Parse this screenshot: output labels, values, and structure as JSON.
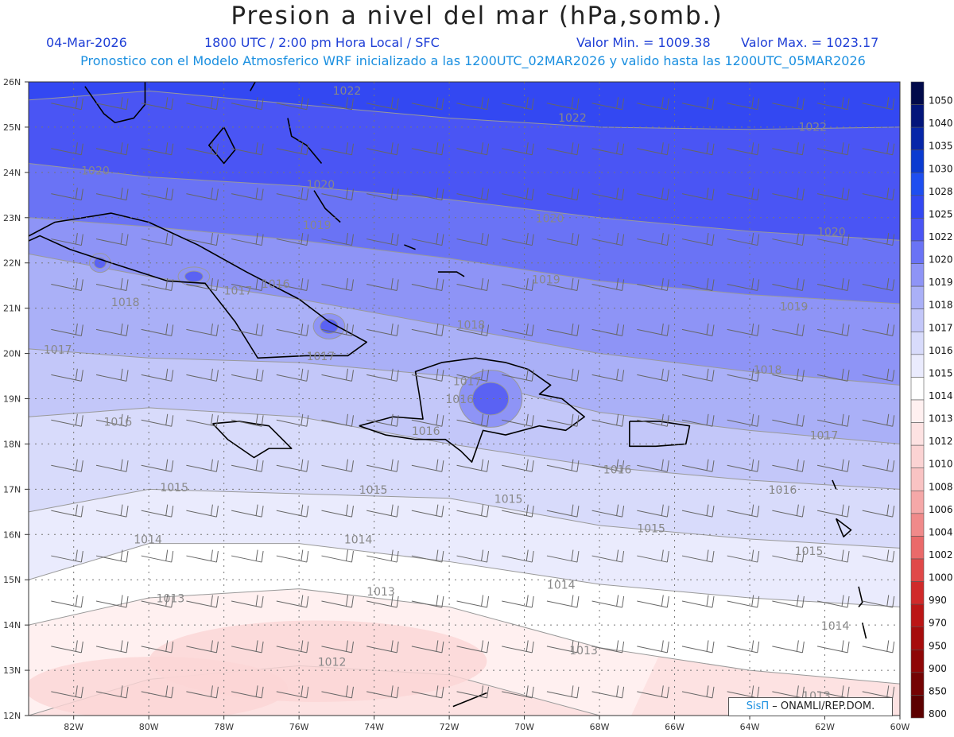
{
  "title": "Presion a nivel del mar (hPa,somb.)",
  "header": {
    "date": "04-Mar-2026",
    "time": "1800 UTC / 2:00 pm Hora Local / SFC",
    "vmin": "Valor Min. = 1009.38",
    "vmax": "Valor Max. = 1023.17",
    "info": "Pronostico con el Modelo Atmosferico WRF inicializado a las 1200UTC_02MAR2026 y valido hasta las  1200UTC_05MAR2026"
  },
  "map": {
    "lat_labels": [
      "26N",
      "25N",
      "24N",
      "23N",
      "22N",
      "21N",
      "20N",
      "19N",
      "18N",
      "17N",
      "16N",
      "15N",
      "14N",
      "13N",
      "12N"
    ],
    "lon_labels": [
      "82W",
      "80W",
      "78W",
      "76W",
      "74W",
      "72W",
      "70W",
      "68W",
      "66W",
      "64W",
      "62W",
      "60W"
    ],
    "lat_range": [
      12,
      26
    ],
    "lon_range": [
      -83.2,
      -60
    ],
    "contours": [
      {
        "value": "1022",
        "points": [
          [
            -83.2,
            25.6
          ],
          [
            -80,
            25.8
          ],
          [
            -76,
            25.5
          ],
          [
            -72,
            25.2
          ],
          [
            -68,
            25.0
          ],
          [
            -64,
            24.95
          ],
          [
            -60,
            25.0
          ]
        ]
      },
      {
        "value": "1020",
        "points": [
          [
            -83.2,
            24.2
          ],
          [
            -80,
            23.9
          ],
          [
            -76,
            23.7
          ],
          [
            -72,
            23.4
          ],
          [
            -68,
            23.0
          ],
          [
            -64,
            22.7
          ],
          [
            -60,
            22.5
          ]
        ]
      },
      {
        "value": "1019",
        "points": [
          [
            -83.2,
            23.0
          ],
          [
            -80,
            22.8
          ],
          [
            -76,
            22.5
          ],
          [
            -72,
            22.1
          ],
          [
            -68,
            21.6
          ],
          [
            -64,
            21.3
          ],
          [
            -60,
            21.1
          ]
        ]
      },
      {
        "value": "1018",
        "points": [
          [
            -83.2,
            22.2
          ],
          [
            -80,
            21.7
          ],
          [
            -76,
            21.2
          ],
          [
            -72,
            20.6
          ],
          [
            -68,
            20.0
          ],
          [
            -64,
            19.6
          ],
          [
            -60,
            19.3
          ]
        ]
      },
      {
        "value": "1017",
        "points": [
          [
            -83.2,
            20.1
          ],
          [
            -80,
            19.9
          ],
          [
            -76,
            19.8
          ],
          [
            -72,
            19.5
          ],
          [
            -68,
            18.7
          ],
          [
            -64,
            18.3
          ],
          [
            -60,
            18.0
          ]
        ]
      },
      {
        "value": "1016",
        "points": [
          [
            -83.2,
            18.6
          ],
          [
            -80,
            18.8
          ],
          [
            -76,
            18.6
          ],
          [
            -72,
            18.0
          ],
          [
            -68,
            17.5
          ],
          [
            -64,
            17.2
          ],
          [
            -60,
            17.0
          ]
        ]
      },
      {
        "value": "1015",
        "points": [
          [
            -83.2,
            16.5
          ],
          [
            -80,
            17.0
          ],
          [
            -76,
            16.9
          ],
          [
            -72,
            16.8
          ],
          [
            -68,
            16.2
          ],
          [
            -64,
            15.9
          ],
          [
            -60,
            15.7
          ]
        ]
      },
      {
        "value": "1014",
        "points": [
          [
            -83.2,
            15.0
          ],
          [
            -80,
            15.8
          ],
          [
            -76,
            15.8
          ],
          [
            -72,
            15.4
          ],
          [
            -68,
            14.9
          ],
          [
            -64,
            14.6
          ],
          [
            -60,
            14.4
          ]
        ]
      },
      {
        "value": "1013",
        "points": [
          [
            -83.2,
            14.0
          ],
          [
            -80,
            14.6
          ],
          [
            -76,
            14.8
          ],
          [
            -72,
            14.4
          ],
          [
            -68,
            13.5
          ],
          [
            -64,
            13.0
          ],
          [
            -60,
            12.7
          ]
        ]
      },
      {
        "value": "1012",
        "points": [
          [
            -83.2,
            12.0
          ],
          [
            -80,
            12.8
          ],
          [
            -76,
            13.1
          ],
          [
            -72,
            12.9
          ],
          [
            -68,
            12.0
          ]
        ]
      }
    ],
    "contour_labels": [
      {
        "text": "1022",
        "lon": -75.1,
        "lat": 25.72
      },
      {
        "text": "1022",
        "lon": -69.1,
        "lat": 25.12
      },
      {
        "text": "1022",
        "lon": -62.7,
        "lat": 24.92
      },
      {
        "text": "1020",
        "lon": -81.8,
        "lat": 23.95
      },
      {
        "text": "1020",
        "lon": -75.8,
        "lat": 23.65
      },
      {
        "text": "1020",
        "lon": -69.7,
        "lat": 22.9
      },
      {
        "text": "1020",
        "lon": -62.2,
        "lat": 22.6
      },
      {
        "text": "1019",
        "lon": -75.9,
        "lat": 22.75
      },
      {
        "text": "1019",
        "lon": -69.8,
        "lat": 21.55
      },
      {
        "text": "1019",
        "lon": -63.2,
        "lat": 20.95
      },
      {
        "text": "1018",
        "lon": -81.0,
        "lat": 21.05
      },
      {
        "text": "1018",
        "lon": -71.8,
        "lat": 20.55
      },
      {
        "text": "1018",
        "lon": -63.9,
        "lat": 19.55
      },
      {
        "text": "1017",
        "lon": -82.8,
        "lat": 20.0
      },
      {
        "text": "1017",
        "lon": -78.0,
        "lat": 21.3
      },
      {
        "text": "1017",
        "lon": -75.8,
        "lat": 19.85
      },
      {
        "text": "1017",
        "lon": -71.9,
        "lat": 19.3
      },
      {
        "text": "1017",
        "lon": -62.4,
        "lat": 18.1
      },
      {
        "text": "1016",
        "lon": -77.0,
        "lat": 21.45
      },
      {
        "text": "1016",
        "lon": -72.1,
        "lat": 18.9
      },
      {
        "text": "1016",
        "lon": -73.0,
        "lat": 18.2
      },
      {
        "text": "1016",
        "lon": -81.2,
        "lat": 18.4
      },
      {
        "text": "1016",
        "lon": -67.9,
        "lat": 17.35
      },
      {
        "text": "1016",
        "lon": -63.5,
        "lat": 16.9
      },
      {
        "text": "1015",
        "lon": -79.7,
        "lat": 16.95
      },
      {
        "text": "1015",
        "lon": -74.4,
        "lat": 16.9
      },
      {
        "text": "1015",
        "lon": -70.8,
        "lat": 16.7
      },
      {
        "text": "1015",
        "lon": -67.0,
        "lat": 16.05
      },
      {
        "text": "1015",
        "lon": -62.8,
        "lat": 15.55
      },
      {
        "text": "1014",
        "lon": -80.4,
        "lat": 15.8
      },
      {
        "text": "1014",
        "lon": -74.8,
        "lat": 15.8
      },
      {
        "text": "1014",
        "lon": -69.4,
        "lat": 14.8
      },
      {
        "text": "1014",
        "lon": -62.1,
        "lat": 13.9
      },
      {
        "text": "1013",
        "lon": -79.8,
        "lat": 14.5
      },
      {
        "text": "1013",
        "lon": -74.2,
        "lat": 14.65
      },
      {
        "text": "1013",
        "lon": -68.8,
        "lat": 13.35
      },
      {
        "text": "1013",
        "lon": -62.6,
        "lat": 12.35
      },
      {
        "text": "1012",
        "lon": -75.5,
        "lat": 13.1
      }
    ],
    "highs": [
      {
        "lon": -70.9,
        "lat": 19.0,
        "rx": 0.6,
        "ry": 0.45
      },
      {
        "lon": -75.2,
        "lat": 20.6,
        "rx": 0.3,
        "ry": 0.2
      },
      {
        "lon": -81.3,
        "lat": 22.0,
        "rx": 0.2,
        "ry": 0.15
      },
      {
        "lon": -78.8,
        "lat": 21.7,
        "rx": 0.3,
        "ry": 0.15
      }
    ],
    "lows": [
      {
        "lon": -75.5,
        "lat": 13.2,
        "rx": 4.5,
        "ry": 0.9
      },
      {
        "lon": -79.8,
        "lat": 12.6,
        "rx": 3.5,
        "ry": 0.7
      }
    ],
    "coastlines": [
      [
        [
          -80.1,
          26.0
        ],
        [
          -80.1,
          25.5
        ],
        [
          -80.4,
          25.2
        ],
        [
          -80.9,
          25.1
        ],
        [
          -81.2,
          25.3
        ],
        [
          -81.7,
          25.9
        ]
      ],
      [
        [
          -84.9,
          21.85
        ],
        [
          -82.5,
          22.9
        ],
        [
          -81.0,
          23.1
        ],
        [
          -80.0,
          22.9
        ],
        [
          -78.7,
          22.4
        ],
        [
          -77.4,
          21.8
        ],
        [
          -76.0,
          21.2
        ],
        [
          -75.2,
          20.7
        ],
        [
          -74.2,
          20.25
        ],
        [
          -74.7,
          19.95
        ],
        [
          -75.8,
          19.95
        ],
        [
          -77.1,
          19.9
        ],
        [
          -77.7,
          20.7
        ],
        [
          -78.5,
          21.55
        ],
        [
          -79.5,
          21.6
        ],
        [
          -81.0,
          22.0
        ],
        [
          -82.1,
          22.3
        ],
        [
          -82.9,
          22.6
        ],
        [
          -84.9,
          21.85
        ]
      ],
      [
        [
          -78.3,
          18.45
        ],
        [
          -77.6,
          18.5
        ],
        [
          -76.8,
          18.4
        ],
        [
          -76.2,
          17.9
        ],
        [
          -76.8,
          17.9
        ],
        [
          -77.2,
          17.7
        ],
        [
          -77.9,
          18.1
        ],
        [
          -78.3,
          18.45
        ]
      ],
      [
        [
          -74.4,
          18.4
        ],
        [
          -73.5,
          18.6
        ],
        [
          -72.7,
          18.55
        ],
        [
          -72.8,
          19.1
        ],
        [
          -72.9,
          19.6
        ],
        [
          -72.2,
          19.8
        ],
        [
          -71.3,
          19.9
        ],
        [
          -70.5,
          19.8
        ],
        [
          -69.9,
          19.65
        ],
        [
          -69.3,
          19.3
        ],
        [
          -69.6,
          19.1
        ],
        [
          -69.0,
          19.0
        ],
        [
          -68.4,
          18.6
        ],
        [
          -68.9,
          18.3
        ],
        [
          -69.6,
          18.4
        ],
        [
          -70.5,
          18.2
        ],
        [
          -71.1,
          18.3
        ],
        [
          -71.4,
          17.6
        ],
        [
          -71.7,
          17.85
        ],
        [
          -72.1,
          18.1
        ],
        [
          -72.9,
          18.1
        ],
        [
          -73.7,
          18.2
        ],
        [
          -74.4,
          18.4
        ]
      ],
      [
        [
          -67.2,
          18.5
        ],
        [
          -66.4,
          18.5
        ],
        [
          -65.6,
          18.4
        ],
        [
          -65.7,
          18.0
        ],
        [
          -66.5,
          17.95
        ],
        [
          -67.2,
          17.95
        ],
        [
          -67.2,
          18.5
        ]
      ],
      [
        [
          -78.5,
          26.8
        ],
        [
          -77.9,
          26.6
        ],
        [
          -77.2,
          26.5
        ],
        [
          -77.1,
          26.1
        ],
        [
          -77.3,
          25.8
        ]
      ],
      [
        [
          -78.0,
          25.0
        ],
        [
          -77.7,
          24.5
        ],
        [
          -78.0,
          24.2
        ],
        [
          -78.4,
          24.6
        ],
        [
          -78.0,
          25.0
        ]
      ],
      [
        [
          -76.3,
          25.2
        ],
        [
          -76.2,
          24.8
        ],
        [
          -75.8,
          24.6
        ],
        [
          -75.4,
          24.2
        ]
      ],
      [
        [
          -75.6,
          23.6
        ],
        [
          -75.3,
          23.2
        ],
        [
          -74.9,
          22.9
        ]
      ],
      [
        [
          -73.2,
          22.4
        ],
        [
          -72.9,
          22.3
        ]
      ],
      [
        [
          -72.3,
          21.8
        ],
        [
          -71.8,
          21.8
        ],
        [
          -71.6,
          21.7
        ]
      ],
      [
        [
          -61.8,
          17.2
        ],
        [
          -61.7,
          17.0
        ]
      ],
      [
        [
          -61.7,
          16.35
        ],
        [
          -61.3,
          16.1
        ],
        [
          -61.5,
          15.95
        ],
        [
          -61.7,
          16.35
        ]
      ],
      [
        [
          -61.1,
          14.85
        ],
        [
          -61.0,
          14.5
        ],
        [
          -61.1,
          14.4
        ]
      ],
      [
        [
          -61.0,
          14.05
        ],
        [
          -60.9,
          13.7
        ]
      ],
      [
        [
          -71.0,
          12.5
        ],
        [
          -71.9,
          12.2
        ]
      ]
    ],
    "wind_rows": [
      25.6,
      24.6,
      23.6,
      22.6,
      21.6,
      20.6,
      19.6,
      18.6,
      17.6,
      16.6,
      15.6,
      14.6,
      13.6,
      12.6
    ],
    "wind_cols": [
      -82.6,
      -81.4,
      -80.2,
      -79.0,
      -77.8,
      -76.6,
      -75.4,
      -74.2,
      -73.0,
      -71.8,
      -70.6,
      -69.4,
      -68.2,
      -67.0,
      -65.8,
      -64.6,
      -63.4,
      -62.2,
      -61.0
    ]
  },
  "colorbar": {
    "labels": [
      "1050",
      "1040",
      "1035",
      "1030",
      "1028",
      "1025",
      "1022",
      "1020",
      "1019",
      "1018",
      "1017",
      "1016",
      "1015",
      "1014",
      "1013",
      "1012",
      "1010",
      "1008",
      "1006",
      "1004",
      "1002",
      "1000",
      "990",
      "970",
      "950",
      "900",
      "850",
      "800"
    ],
    "colors": [
      "#010a4a",
      "#03157a",
      "#0626a8",
      "#0b3bd0",
      "#1e4ef0",
      "#3348f2",
      "#4a55f4",
      "#6a73f5",
      "#8e94f6",
      "#aab0f7",
      "#c3c7f9",
      "#d8dbfb",
      "#eaebfd",
      "#ffffff",
      "#fff0f0",
      "#fde2e2",
      "#fbd3d3",
      "#f9c3c3",
      "#f5a8a8",
      "#f08a8a",
      "#ea6a6a",
      "#e04848",
      "#d02a2a",
      "#bb1616",
      "#a60c0c",
      "#8e0606",
      "#740303",
      "#5c0000"
    ]
  },
  "credit": {
    "brand": "SisΠ",
    "text": " – ONAMLI/REP.DOM."
  }
}
